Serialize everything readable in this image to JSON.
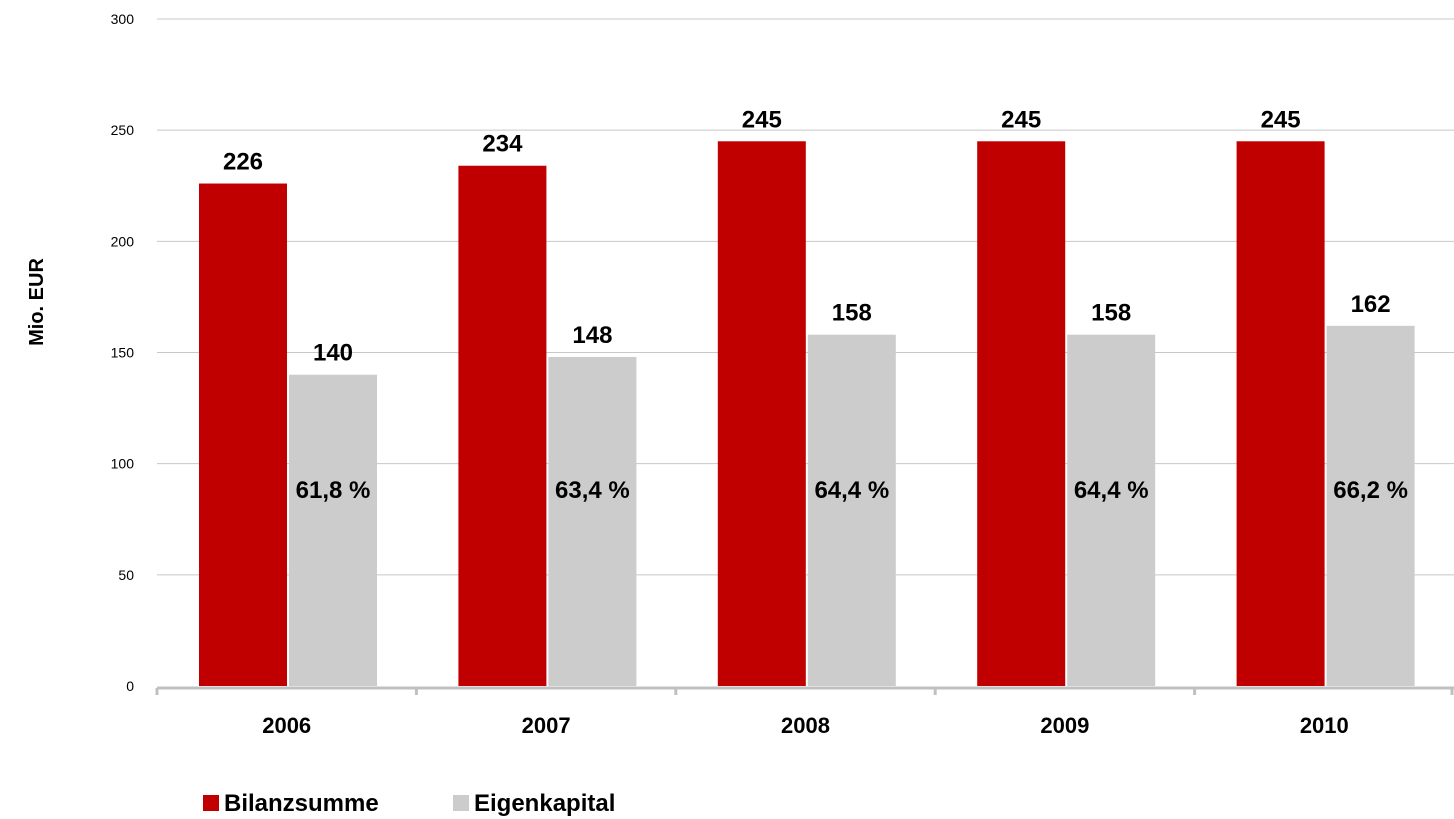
{
  "chart_data": {
    "type": "bar",
    "categories": [
      "2006",
      "2007",
      "2008",
      "2009",
      "2010"
    ],
    "series": [
      {
        "name": "Bilanzsumme",
        "values": [
          226,
          234,
          245,
          245,
          245
        ],
        "color": "#c00000"
      },
      {
        "name": "Eigenkapital",
        "values": [
          140,
          148,
          158,
          158,
          162
        ],
        "color": "#cccccc",
        "inner_labels": [
          "61,8 %",
          "63,4 %",
          "64,4 %",
          "64,4 %",
          "66,2 %"
        ]
      }
    ],
    "ylabel": "Mio. EUR",
    "ylim": [
      0,
      300
    ],
    "yticks": [
      0,
      50,
      100,
      150,
      200,
      250,
      300
    ],
    "grid": true,
    "legend": "bottom-left"
  }
}
